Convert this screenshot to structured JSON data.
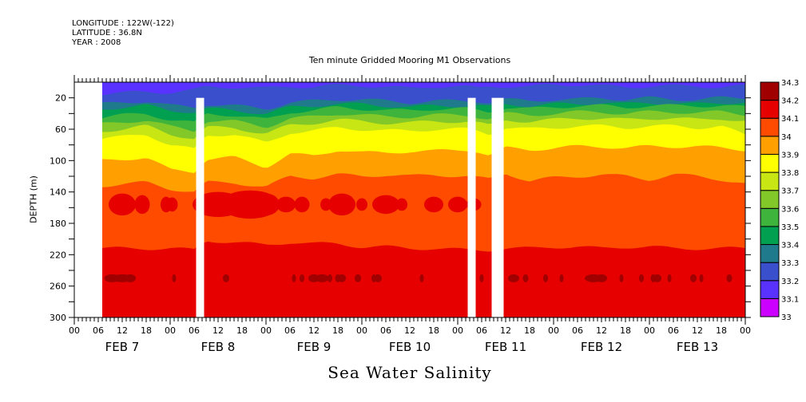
{
  "header": {
    "longitude": "LONGITUDE : 122W(-122)",
    "latitude": "LATITUDE : 36.8N",
    "year": "YEAR : 2008"
  },
  "chart_data": {
    "type": "heatmap",
    "subtype": "filled-contour depth-time section",
    "title": "Ten minute Gridded Mooring M1 Observations",
    "xlabel": "Sea Water Salinity",
    "ylabel": "DEPTH (m)",
    "variable": "Sea Water Salinity",
    "x_axis": {
      "start": "2008-02-07T00:00",
      "end": "2008-02-14T00:00",
      "hour_tick_labels": [
        "00",
        "06",
        "12",
        "18",
        "00",
        "06",
        "12",
        "18",
        "00",
        "06",
        "12",
        "18",
        "00",
        "06",
        "12",
        "18",
        "00",
        "06",
        "12",
        "18",
        "00",
        "06",
        "12",
        "18",
        "00",
        "06",
        "12",
        "18",
        "00"
      ],
      "date_labels": [
        "FEB  7",
        "FEB  8",
        "FEB  9",
        "FEB 10",
        "FEB 11",
        "FEB 12",
        "FEB 13"
      ],
      "minor_tick_hours": 1
    },
    "y_axis": {
      "range": [
        0,
        300
      ],
      "inverted": true,
      "tick_labels": [
        "20",
        "60",
        "100",
        "140",
        "180",
        "220",
        "260",
        "300"
      ],
      "tick_values": [
        20,
        60,
        100,
        140,
        180,
        220,
        260,
        300
      ],
      "minor_tick_values": [
        40,
        80,
        120,
        160,
        200,
        240,
        280
      ]
    },
    "colorbar": {
      "levels": [
        33,
        33.1,
        33.2,
        33.3,
        33.4,
        33.5,
        33.6,
        33.7,
        33.8,
        33.9,
        34,
        34.1,
        34.2,
        34.3
      ],
      "labels": [
        "33",
        "33.1",
        "33.2",
        "33.3",
        "33.4",
        "33.5",
        "33.6",
        "33.7",
        "33.8",
        "33.9",
        "34",
        "34.1",
        "34.2",
        "34.3"
      ],
      "colors": [
        "#cc00ff",
        "#5a32ff",
        "#3a4fcc",
        "#1f7a8c",
        "#00a050",
        "#3fb43c",
        "#82c828",
        "#c8e614",
        "#ffff00",
        "#ffa000",
        "#ff4b00",
        "#e60000",
        "#a00000"
      ]
    },
    "missing_data_hours": [
      {
        "from": 0,
        "to": 7
      },
      {
        "from": 30.5,
        "to": 32.5,
        "depth_from": 20
      },
      {
        "from": 98.5,
        "to": 100.5,
        "depth_from": 20
      },
      {
        "from": 104.5,
        "to": 107.5,
        "depth_from": 20
      }
    ],
    "layers_description": [
      {
        "salinity_band": "33.1-33.2",
        "approx_depth_m": "0-15 (Feb 7, early Feb 9, Feb 10-11)"
      },
      {
        "salinity_band": "33.2-33.3",
        "approx_depth_m": "0-40"
      },
      {
        "salinity_band": "33.3-33.7",
        "approx_depth_m": "25-80 (undulating)"
      },
      {
        "salinity_band": "33.7-33.8",
        "approx_depth_m": "60-90"
      },
      {
        "salinity_band": "33.8-33.9",
        "approx_depth_m": "75-110"
      },
      {
        "salinity_band": "33.9-34.0",
        "approx_depth_m": "95-135"
      },
      {
        "salinity_band": "34.0-34.1",
        "approx_depth_m": "125-215"
      },
      {
        "salinity_band": "34.1-34.2",
        "approx_depth_m": "140-170 patches; 210-300"
      },
      {
        "salinity_band": "34.2-34.3",
        "approx_depth_m": "~250 thin patches"
      }
    ],
    "interface_depths": {
      "hours": [
        7,
        12,
        18,
        24,
        30,
        33,
        40,
        48,
        54,
        60,
        66,
        72,
        78,
        84,
        90,
        98,
        101,
        104,
        108,
        114,
        120,
        126,
        132,
        138,
        144,
        150,
        156,
        162,
        168
      ],
      "d_33_2": [
        15,
        14,
        12,
        13,
        10,
        6,
        6,
        8,
        5,
        6,
        4,
        4,
        6,
        8,
        5,
        6,
        8,
        5,
        5,
        6,
        3,
        3,
        5,
        6,
        5,
        5,
        5,
        6,
        5
      ],
      "d_33_3": [
        28,
        26,
        24,
        30,
        32,
        28,
        30,
        34,
        26,
        24,
        22,
        22,
        24,
        26,
        24,
        24,
        24,
        26,
        22,
        24,
        22,
        22,
        20,
        22,
        20,
        22,
        22,
        20,
        20
      ],
      "d_33_5": [
        45,
        42,
        40,
        48,
        52,
        40,
        42,
        48,
        38,
        36,
        32,
        34,
        36,
        36,
        34,
        34,
        36,
        38,
        32,
        34,
        32,
        30,
        30,
        32,
        30,
        30,
        30,
        30,
        32
      ],
      "d_33_7": [
        62,
        60,
        56,
        66,
        72,
        58,
        58,
        66,
        55,
        52,
        48,
        50,
        52,
        52,
        50,
        50,
        52,
        56,
        48,
        50,
        48,
        46,
        46,
        48,
        46,
        46,
        48,
        46,
        50
      ],
      "d_33_8": [
        72,
        70,
        66,
        80,
        86,
        68,
        66,
        78,
        64,
        62,
        58,
        60,
        62,
        62,
        60,
        60,
        62,
        66,
        58,
        60,
        58,
        56,
        56,
        58,
        56,
        56,
        58,
        56,
        68
      ],
      "d_33_9": [
        100,
        98,
        96,
        112,
        114,
        98,
        96,
        108,
        92,
        94,
        86,
        90,
        90,
        88,
        88,
        86,
        88,
        94,
        84,
        86,
        84,
        82,
        82,
        84,
        82,
        82,
        82,
        84,
        86
      ],
      "d_34_0": [
        132,
        130,
        128,
        136,
        140,
        128,
        128,
        134,
        120,
        122,
        118,
        120,
        118,
        120,
        118,
        120,
        122,
        124,
        116,
        126,
        122,
        120,
        118,
        120,
        124,
        118,
        120,
        124,
        130
      ],
      "d_34_1": [
        212,
        212,
        212,
        212,
        214,
        202,
        204,
        208,
        204,
        206,
        206,
        210,
        210,
        212,
        212,
        214,
        214,
        214,
        212,
        212,
        210,
        210,
        212,
        210,
        210,
        212,
        212,
        212,
        212
      ]
    }
  }
}
